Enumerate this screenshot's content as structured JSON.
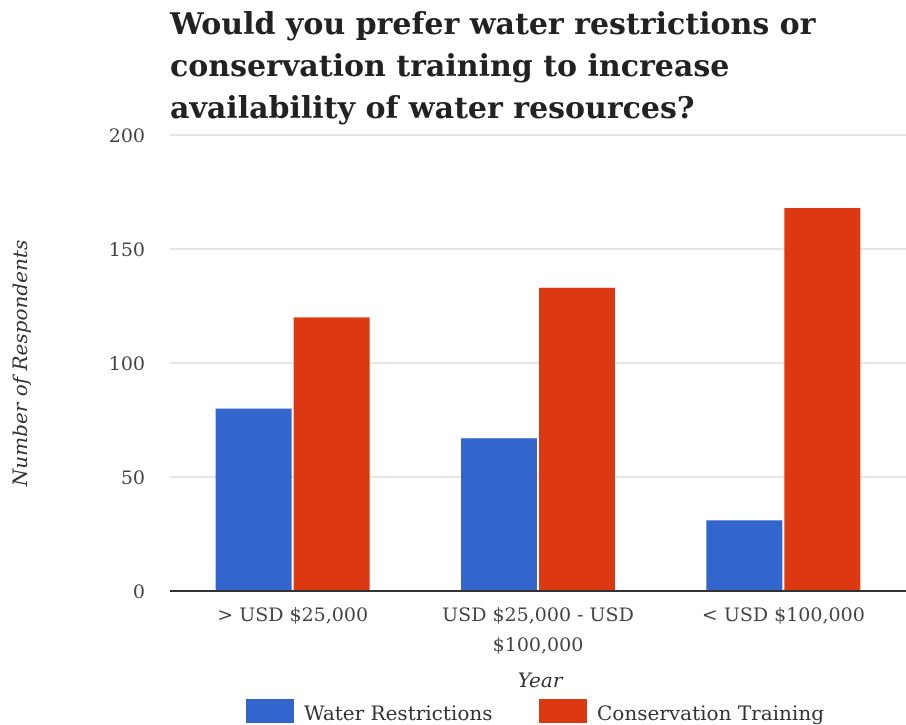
{
  "chart_data": {
    "type": "bar",
    "title": "Would you prefer water restrictions or conservation training to increase availability of water resources?",
    "xlabel": "Year",
    "ylabel": "Number of Respondents",
    "categories": [
      [
        "> USD $25,000"
      ],
      [
        "USD $25,000 - USD",
        "$100,000"
      ],
      [
        "< USD $100,000"
      ]
    ],
    "series": [
      {
        "name": "Water Restrictions",
        "color": "#3366cc",
        "values": [
          80,
          67,
          31
        ]
      },
      {
        "name": "Conservation Training",
        "color": "#dc3912",
        "values": [
          120,
          133,
          168
        ]
      }
    ],
    "ylim": [
      0,
      200
    ],
    "yticks": [
      0,
      50,
      100,
      150,
      200
    ],
    "grid": true,
    "legend_position": "bottom"
  }
}
